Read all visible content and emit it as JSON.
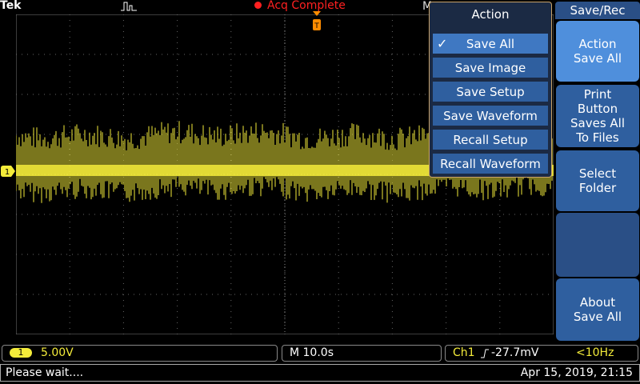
{
  "brand": "Tek",
  "acquisition_status": "Acq Complete",
  "top_timebase_label": "M",
  "action_menu": {
    "title": "Action",
    "items": [
      {
        "label": "Save All",
        "selected": true
      },
      {
        "label": "Save Image",
        "selected": false
      },
      {
        "label": "Save Setup",
        "selected": false
      },
      {
        "label": "Save Waveform",
        "selected": false
      },
      {
        "label": "Recall Setup",
        "selected": false
      },
      {
        "label": "Recall Waveform",
        "selected": false
      }
    ]
  },
  "sidebar": {
    "title": "Save/Rec",
    "buttons": [
      {
        "label": "Action\nSave All"
      },
      {
        "label": "Print\nButton\nSaves All\nTo Files"
      },
      {
        "label": "Select\nFolder"
      },
      {
        "label": "About\nSave All"
      }
    ]
  },
  "channel": {
    "number": "1",
    "scale": "5.00V",
    "color": "#f4ec3a"
  },
  "timebase": {
    "label": "M 10.0s"
  },
  "trigger": {
    "source": "Ch1",
    "slope_icon": "rising-edge-icon",
    "level": "-27.7mV",
    "frequency": "<10Hz"
  },
  "status": {
    "message": "Please wait....",
    "datetime": "Apr 15, 2019, 21:15"
  },
  "colors": {
    "menu_background": "#1b2a44",
    "menu_item": "#2f5f9f",
    "accent": "#4f8fdc",
    "trigger": "#ff8c00",
    "acq_status": "#ff2020"
  }
}
